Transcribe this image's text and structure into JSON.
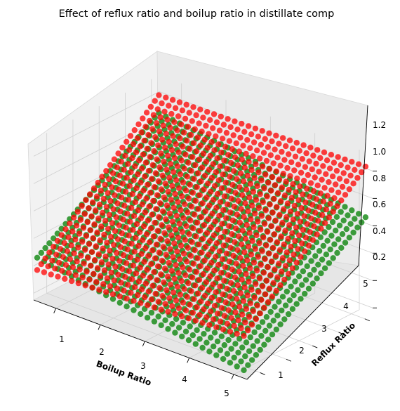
{
  "chart_data": {
    "type": "scatter",
    "projection": "3d",
    "title": "Effect of reflux ratio and boilup ratio in distillate comp",
    "xlabel": "Boilup Ratio",
    "ylabel": "Reflux Ratio",
    "zlabel": "",
    "x_ticks": [
      "1",
      "2",
      "3",
      "4",
      "5"
    ],
    "y_ticks": [
      "1",
      "2",
      "3",
      "4",
      "5"
    ],
    "z_ticks": [
      "0.2",
      "0.4",
      "0.6",
      "0.8",
      "1.0",
      "1.2"
    ],
    "xlim": [
      0.5,
      5.3
    ],
    "ylim": [
      0.5,
      5.3
    ],
    "zlim": [
      0.15,
      1.32
    ],
    "grid": true,
    "series": [
      {
        "color": "#008000",
        "marker": "o",
        "surface_corners": [
          {
            "x": 0.55,
            "y": 0.55,
            "z": 0.46
          },
          {
            "x": 5.2,
            "y": 0.55,
            "z": 0.2
          },
          {
            "x": 5.2,
            "y": 5.2,
            "z": 0.86
          },
          {
            "x": 0.55,
            "y": 5.2,
            "z": 1.06
          }
        ]
      },
      {
        "color": "#ff0000",
        "marker": "o",
        "surface_corners": [
          {
            "x": 0.55,
            "y": 0.55,
            "z": 0.37
          },
          {
            "x": 5.2,
            "y": 0.55,
            "z": 0.45
          },
          {
            "x": 5.2,
            "y": 5.2,
            "z": 1.23
          },
          {
            "x": 0.55,
            "y": 5.2,
            "z": 1.19
          }
        ]
      }
    ]
  }
}
